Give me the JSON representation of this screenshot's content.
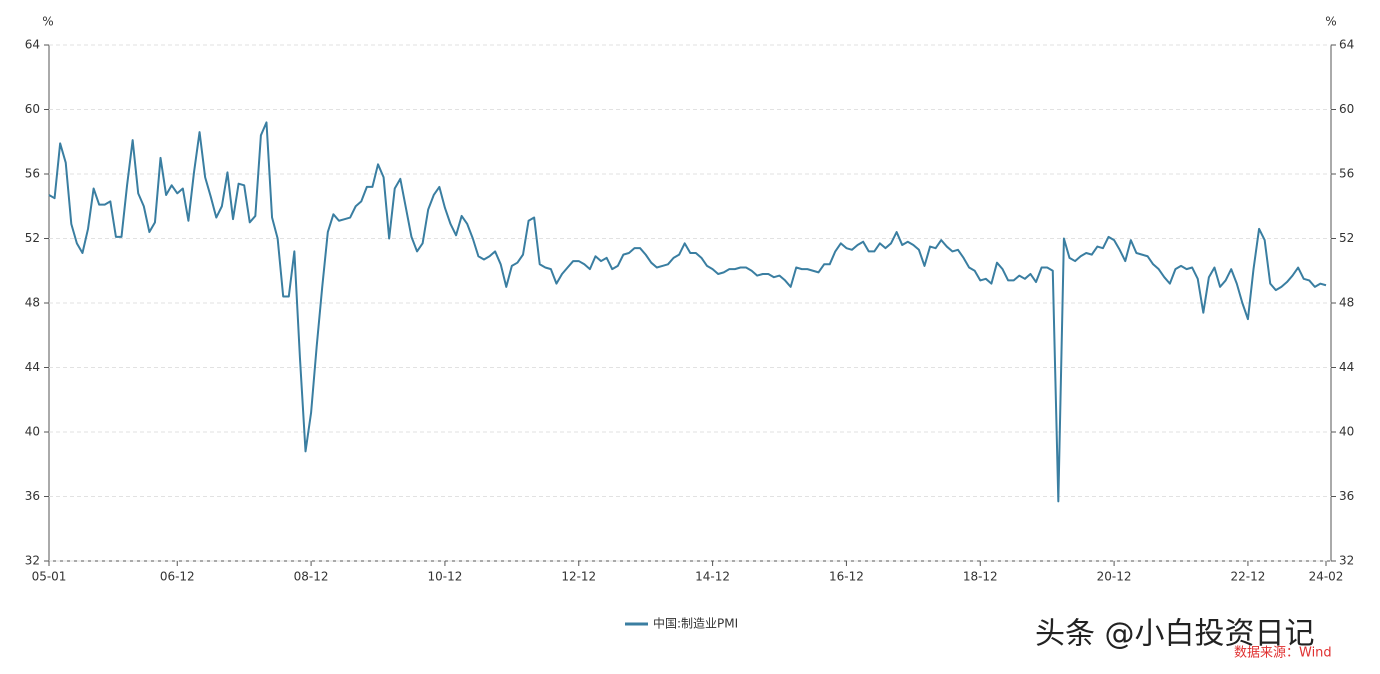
{
  "chart_data": {
    "type": "line",
    "y_unit": "%",
    "y2_unit": "%",
    "categories": [
      "05-01",
      null,
      null,
      null,
      null,
      null,
      null,
      null,
      null,
      null,
      null,
      null,
      null,
      null,
      null,
      null,
      null,
      null,
      null,
      null,
      null,
      null,
      null,
      "06-12",
      null,
      null,
      null,
      null,
      null,
      null,
      null,
      null,
      null,
      null,
      null,
      null,
      null,
      null,
      null,
      null,
      null,
      null,
      null,
      null,
      null,
      null,
      null,
      "08-12",
      null,
      null,
      null,
      null,
      null,
      null,
      null,
      null,
      null,
      null,
      null,
      null,
      null,
      null,
      null,
      null,
      null,
      null,
      null,
      null,
      null,
      null,
      null,
      "10-12",
      null,
      null,
      null,
      null,
      null,
      null,
      null,
      null,
      null,
      null,
      null,
      null,
      null,
      null,
      null,
      null,
      null,
      null,
      null,
      null,
      null,
      null,
      null,
      "12-12",
      null,
      null,
      null,
      null,
      null,
      null,
      null,
      null,
      null,
      null,
      null,
      null,
      null,
      null,
      null,
      null,
      null,
      null,
      null,
      null,
      null,
      null,
      null,
      "14-12",
      null,
      null,
      null,
      null,
      null,
      null,
      null,
      null,
      null,
      null,
      null,
      null,
      null,
      null,
      null,
      null,
      null,
      null,
      null,
      null,
      null,
      null,
      null,
      "16-12",
      null,
      null,
      null,
      null,
      null,
      null,
      null,
      null,
      null,
      null,
      null,
      null,
      null,
      null,
      null,
      null,
      null,
      null,
      null,
      null,
      null,
      null,
      null,
      "18-12",
      null,
      null,
      null,
      null,
      null,
      null,
      null,
      null,
      null,
      null,
      null,
      null,
      null,
      null,
      null,
      null,
      null,
      null,
      null,
      null,
      null,
      null,
      null,
      "20-12",
      null,
      null,
      null,
      null,
      null,
      null,
      null,
      null,
      null,
      null,
      null,
      null,
      null,
      null,
      null,
      null,
      null,
      null,
      null,
      null,
      null,
      null,
      null,
      "22-12",
      null,
      null,
      null,
      null,
      null,
      null,
      null,
      null,
      null,
      null,
      null,
      null,
      null,
      "24-02"
    ],
    "series": [
      {
        "name": "中国:制造业PMI",
        "color": "#3a7ea1",
        "values": [
          54.7,
          54.5,
          57.9,
          56.7,
          52.9,
          51.7,
          51.1,
          52.6,
          55.1,
          54.1,
          54.1,
          54.3,
          52.1,
          52.1,
          55.3,
          58.1,
          54.8,
          54.0,
          52.4,
          53.0,
          57.0,
          54.7,
          55.3,
          54.8,
          55.1,
          53.1,
          56.1,
          58.6,
          55.8,
          54.6,
          53.3,
          54.0,
          56.1,
          53.2,
          55.4,
          55.3,
          53.0,
          53.4,
          58.4,
          59.2,
          53.3,
          52.0,
          48.4,
          48.4,
          51.2,
          44.6,
          38.8,
          41.2,
          45.3,
          49.0,
          52.4,
          53.5,
          53.1,
          53.2,
          53.3,
          54.0,
          54.3,
          55.2,
          55.2,
          56.6,
          55.8,
          52.0,
          55.1,
          55.7,
          53.9,
          52.1,
          51.2,
          51.7,
          53.8,
          54.7,
          55.2,
          53.9,
          52.9,
          52.2,
          53.4,
          52.9,
          52.0,
          50.9,
          50.7,
          50.9,
          51.2,
          50.4,
          49.0,
          50.3,
          50.5,
          51.0,
          53.1,
          53.3,
          50.4,
          50.2,
          50.1,
          49.2,
          49.8,
          50.2,
          50.6,
          50.6,
          50.4,
          50.1,
          50.9,
          50.6,
          50.8,
          50.1,
          50.3,
          51.0,
          51.1,
          51.4,
          51.4,
          51.0,
          50.5,
          50.2,
          50.3,
          50.4,
          50.8,
          51.0,
          51.7,
          51.1,
          51.1,
          50.8,
          50.3,
          50.1,
          49.8,
          49.9,
          50.1,
          50.1,
          50.2,
          50.2,
          50.0,
          49.7,
          49.8,
          49.8,
          49.6,
          49.7,
          49.4,
          49.0,
          50.2,
          50.1,
          50.1,
          50.0,
          49.9,
          50.4,
          50.4,
          51.2,
          51.7,
          51.4,
          51.3,
          51.6,
          51.8,
          51.2,
          51.2,
          51.7,
          51.4,
          51.7,
          52.4,
          51.6,
          51.8,
          51.6,
          51.3,
          50.3,
          51.5,
          51.4,
          51.9,
          51.5,
          51.2,
          51.3,
          50.8,
          50.2,
          50.0,
          49.4,
          49.5,
          49.2,
          50.5,
          50.1,
          49.4,
          49.4,
          49.7,
          49.5,
          49.8,
          49.3,
          50.2,
          50.2,
          50.0,
          35.7,
          52.0,
          50.8,
          50.6,
          50.9,
          51.1,
          51.0,
          51.5,
          51.4,
          52.1,
          51.9,
          51.3,
          50.6,
          51.9,
          51.1,
          51.0,
          50.9,
          50.4,
          50.1,
          49.6,
          49.2,
          50.1,
          50.3,
          50.1,
          50.2,
          49.5,
          47.4,
          49.6,
          50.2,
          49.0,
          49.4,
          50.1,
          49.2,
          48.0,
          47.0,
          50.1,
          52.6,
          51.9,
          49.2,
          48.8,
          49.0,
          49.3,
          49.7,
          50.2,
          49.5,
          49.4,
          49.0,
          49.2,
          49.1
        ]
      }
    ],
    "ylim": [
      32,
      64
    ],
    "yticks": [
      32,
      36,
      40,
      44,
      48,
      52,
      56,
      60,
      64
    ],
    "y2lim": [
      32,
      64
    ],
    "y2ticks": [
      32,
      36,
      40,
      44,
      48,
      52,
      56,
      60,
      64
    ],
    "grid": true,
    "legend": "bottom",
    "watermark": "头条 @小白投资日记",
    "source": "数据来源：Wind"
  }
}
